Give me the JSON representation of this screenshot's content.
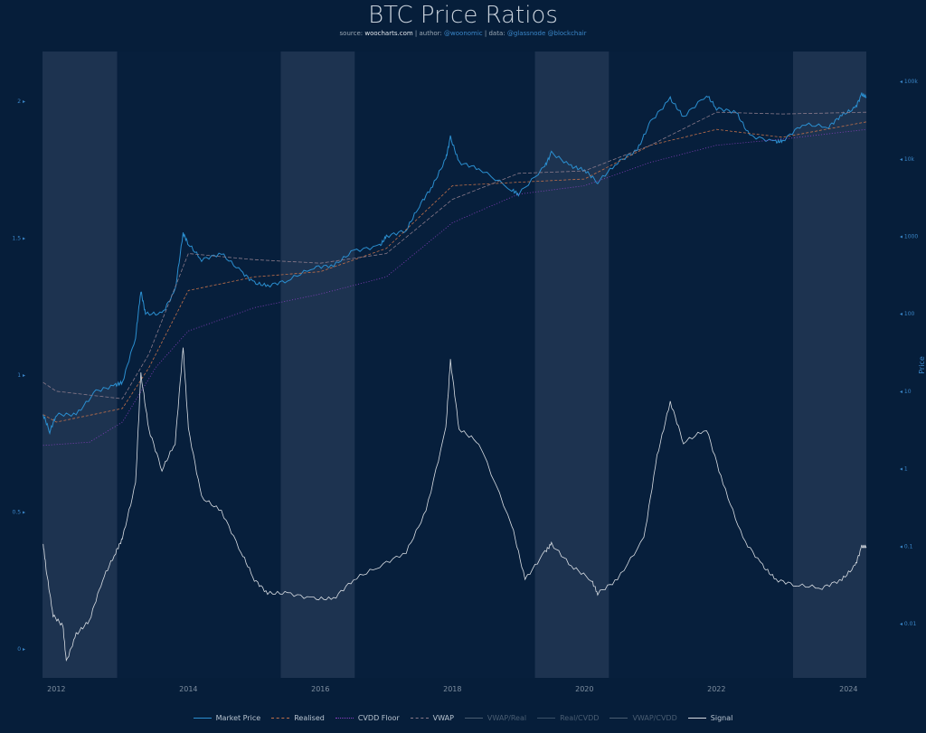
{
  "title": "BTC Price Ratios",
  "subtitle": {
    "source_label": "source:",
    "source": "woocharts.com",
    "author_label": "| author:",
    "author": "@woonomic",
    "data_label": "| data:",
    "data": "@glassnode @blockchair"
  },
  "chart_data": {
    "type": "line",
    "title": "BTC Price Ratios",
    "x_ticks": [
      "2012",
      "2014",
      "2016",
      "2018",
      "2020",
      "2022",
      "2024"
    ],
    "xlim": [
      2011.79,
      2024.27
    ],
    "y_left": {
      "ticks": [
        "0",
        "0.5",
        "1",
        "1.5",
        "2"
      ],
      "range": [
        -0.11,
        2.18
      ]
    },
    "y_right": {
      "label": "Price",
      "scale": "log",
      "ticks": [
        "0.01",
        "0.1",
        "1",
        "10",
        "100",
        "1000",
        "10k",
        "100k"
      ]
    },
    "grid": false,
    "legend": "bottom",
    "shaded_periods": [
      [
        2011.79,
        2012.92
      ],
      [
        2015.4,
        2016.52
      ],
      [
        2019.25,
        2020.37
      ],
      [
        2023.16,
        2024.27
      ]
    ],
    "series": [
      {
        "name": "Market Price",
        "axis": "right",
        "color": "#2b8fd0",
        "dash": "",
        "active": true,
        "x": [
          2011.8,
          2011.9,
          2012.0,
          2012.3,
          2012.6,
          2012.9,
          2013.0,
          2013.2,
          2013.28,
          2013.35,
          2013.6,
          2013.8,
          2013.92,
          2014.0,
          2014.2,
          2014.5,
          2014.8,
          2015.0,
          2015.2,
          2015.5,
          2015.9,
          2016.2,
          2016.5,
          2016.9,
          2017.0,
          2017.3,
          2017.5,
          2017.7,
          2017.9,
          2017.97,
          2018.1,
          2018.4,
          2018.9,
          2019.0,
          2019.4,
          2019.5,
          2019.8,
          2020.0,
          2020.2,
          2020.5,
          2020.8,
          2021.0,
          2021.3,
          2021.5,
          2021.85,
          2022.0,
          2022.3,
          2022.5,
          2022.9,
          2023.0,
          2023.3,
          2023.7,
          2023.9,
          2024.1,
          2024.2,
          2024.27
        ],
        "y": [
          5,
          3,
          5,
          5,
          10,
          12,
          13,
          50,
          200,
          100,
          100,
          200,
          1100,
          800,
          500,
          600,
          350,
          250,
          230,
          270,
          400,
          420,
          650,
          750,
          1000,
          1200,
          2500,
          4500,
          10000,
          19000,
          9000,
          7500,
          4000,
          3500,
          8000,
          12000,
          8000,
          7200,
          5000,
          9000,
          13000,
          30000,
          60000,
          35000,
          67000,
          45000,
          40000,
          20000,
          16500,
          17000,
          28000,
          26000,
          37000,
          45000,
          68000,
          63000
        ]
      },
      {
        "name": "Realised",
        "axis": "right",
        "color": "#c0704a",
        "dash": "3,2",
        "active": true,
        "x": [
          2011.8,
          2012,
          2013,
          2013.4,
          2014,
          2015,
          2016,
          2017,
          2018,
          2019,
          2020,
          2021,
          2022,
          2023,
          2024.27
        ],
        "y": [
          5,
          4,
          6,
          20,
          200,
          300,
          350,
          700,
          4500,
          5000,
          5500,
          15000,
          24000,
          19000,
          30000
        ]
      },
      {
        "name": "CVDD Floor",
        "axis": "right",
        "color": "#8a3fc0",
        "dash": "1,2",
        "active": true,
        "x": [
          2011.8,
          2012.5,
          2013,
          2013.5,
          2014,
          2015,
          2016,
          2017,
          2018,
          2019,
          2020,
          2021,
          2022,
          2023,
          2024.27
        ],
        "y": [
          2,
          2.2,
          4,
          20,
          60,
          120,
          180,
          300,
          1500,
          3500,
          4500,
          9000,
          15000,
          18000,
          24000
        ]
      },
      {
        "name": "VWAP",
        "axis": "right",
        "color": "#8a7a8a",
        "dash": "4,2",
        "active": true,
        "x": [
          2011.8,
          2012,
          2013,
          2013.4,
          2014,
          2015,
          2016,
          2017,
          2018,
          2019,
          2020,
          2021,
          2022,
          2023,
          2024.27
        ],
        "y": [
          13,
          10,
          8,
          30,
          600,
          500,
          450,
          600,
          3000,
          6500,
          7000,
          15000,
          40000,
          38000,
          40000
        ]
      },
      {
        "name": "VWAP/Real",
        "axis": "left",
        "color": "#4a5d72",
        "dash": "",
        "active": false,
        "x": [],
        "y": []
      },
      {
        "name": "Real/CVDD",
        "axis": "left",
        "color": "#3a5068",
        "dash": "",
        "active": false,
        "x": [],
        "y": []
      },
      {
        "name": "VWAP/CVDD",
        "axis": "left",
        "color": "#4a5d72",
        "dash": "",
        "active": false,
        "x": [],
        "y": []
      },
      {
        "name": "Signal",
        "axis": "left",
        "color": "#d8dde3",
        "dash": "",
        "active": true,
        "x": [
          2011.8,
          2011.85,
          2011.95,
          2012.1,
          2012.15,
          2012.3,
          2012.5,
          2012.7,
          2012.9,
          2013.0,
          2013.2,
          2013.28,
          2013.4,
          2013.6,
          2013.8,
          2013.92,
          2014.0,
          2014.2,
          2014.5,
          2014.8,
          2015.0,
          2015.2,
          2015.5,
          2015.9,
          2016.2,
          2016.5,
          2016.9,
          2017.3,
          2017.6,
          2017.9,
          2017.97,
          2018.1,
          2018.4,
          2018.9,
          2019.1,
          2019.4,
          2019.5,
          2019.8,
          2020.1,
          2020.2,
          2020.5,
          2020.9,
          2021.1,
          2021.3,
          2021.5,
          2021.85,
          2022.1,
          2022.4,
          2022.7,
          2022.9,
          2023.2,
          2023.6,
          2023.9,
          2024.1,
          2024.2,
          2024.27
        ],
        "y": [
          0.38,
          0.28,
          0.12,
          0.08,
          -0.05,
          0.05,
          0.1,
          0.25,
          0.35,
          0.4,
          0.6,
          1.0,
          0.8,
          0.65,
          0.75,
          1.1,
          0.8,
          0.55,
          0.5,
          0.35,
          0.25,
          0.2,
          0.2,
          0.18,
          0.18,
          0.25,
          0.3,
          0.35,
          0.5,
          0.8,
          1.05,
          0.8,
          0.75,
          0.45,
          0.25,
          0.35,
          0.38,
          0.3,
          0.25,
          0.2,
          0.25,
          0.4,
          0.7,
          0.9,
          0.75,
          0.8,
          0.6,
          0.4,
          0.3,
          0.25,
          0.23,
          0.22,
          0.25,
          0.3,
          0.37,
          0.37
        ]
      }
    ]
  }
}
